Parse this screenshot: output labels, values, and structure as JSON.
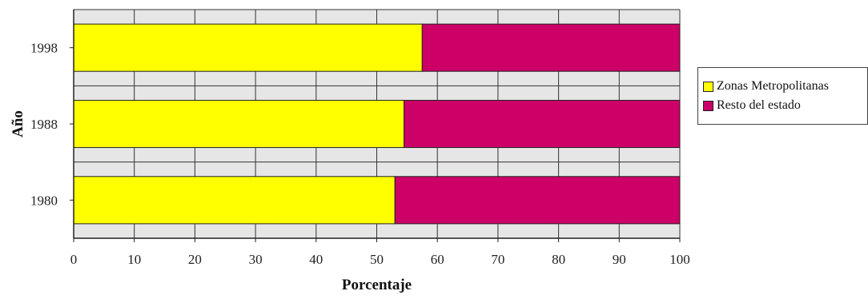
{
  "chart_data": {
    "type": "bar",
    "orientation": "horizontal",
    "stacked": true,
    "categories": [
      "1998",
      "1988",
      "1980"
    ],
    "series": [
      {
        "name": "Zonas Metropolitanas",
        "color": "#ffff00",
        "values": [
          57.5,
          54.5,
          53
        ]
      },
      {
        "name": "Resto del estado",
        "color": "#cc0066",
        "values": [
          42.5,
          45.5,
          47
        ]
      }
    ],
    "xlabel": "Porcentaje",
    "ylabel": "Año",
    "xlim": [
      0,
      100
    ],
    "xticks": [
      "0",
      "10",
      "20",
      "30",
      "40",
      "50",
      "60",
      "70",
      "80",
      "90",
      "100"
    ],
    "grid": true,
    "legend": "right",
    "plot_background": "#e6e6e6"
  }
}
